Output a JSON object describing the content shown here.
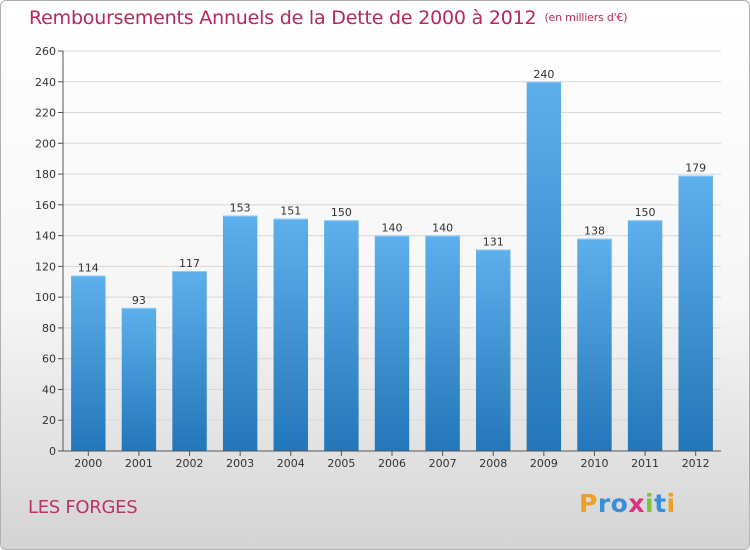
{
  "title": "Remboursements Annuels de la Dette de 2000 à 2012",
  "unit": "(en milliers d'€)",
  "commune": "LES FORGES",
  "logo": {
    "text": "Proxiti",
    "letters": [
      "P",
      "r",
      "o",
      "x",
      "i",
      "t",
      "i"
    ],
    "colors": [
      "#f0a020",
      "#3a8fd8",
      "#3a8fd8",
      "#e03080",
      "#7cc43c",
      "#3a8fd8",
      "#f0a020"
    ]
  },
  "colors": {
    "title": "#b5285f",
    "bar_top": "#5eb0ec",
    "bar_bottom": "#2376b8",
    "grid": "#d8d8d8"
  },
  "chart_data": {
    "type": "bar",
    "categories": [
      "2000",
      "2001",
      "2002",
      "2003",
      "2004",
      "2005",
      "2006",
      "2007",
      "2008",
      "2009",
      "2010",
      "2011",
      "2012"
    ],
    "values": [
      114,
      93,
      117,
      153,
      151,
      150,
      140,
      140,
      131,
      240,
      138,
      150,
      179
    ],
    "title": "Remboursements Annuels de la Dette de 2000 à 2012",
    "ylim": [
      0,
      260
    ],
    "yticks": [
      0,
      20,
      40,
      60,
      80,
      100,
      120,
      140,
      160,
      180,
      200,
      220,
      240,
      260
    ],
    "grid": true,
    "data_labels": true
  }
}
